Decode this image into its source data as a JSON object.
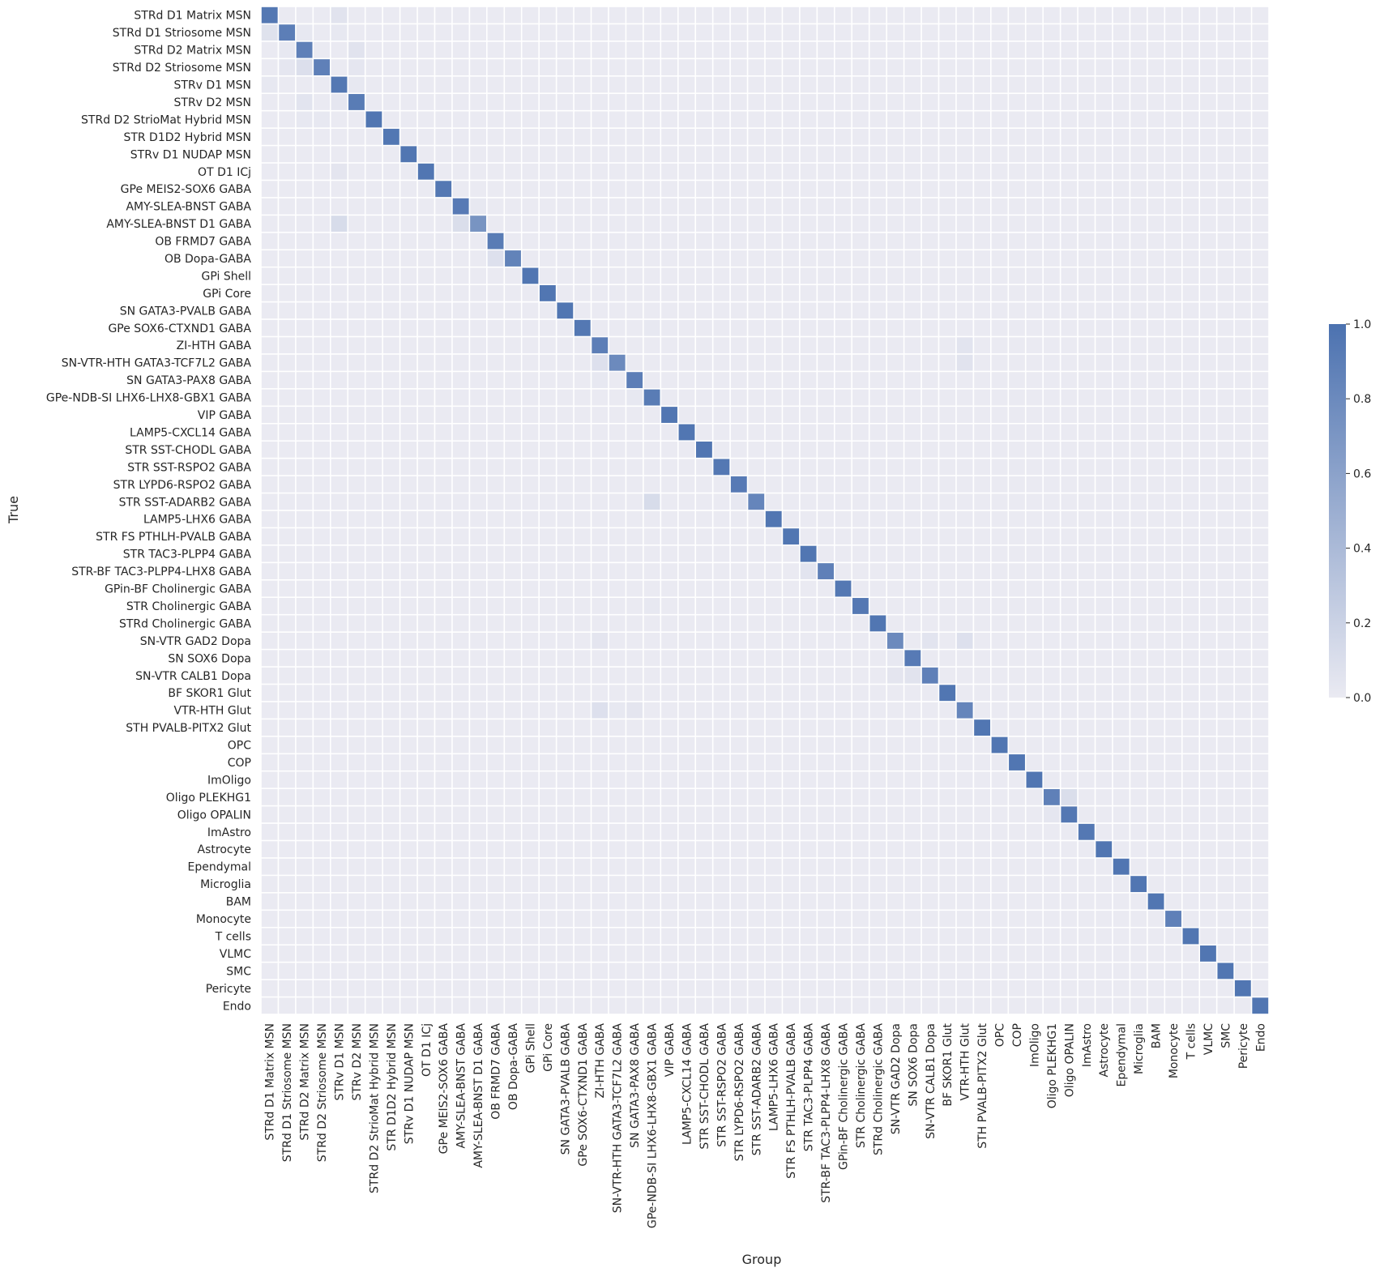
{
  "chart_data": {
    "type": "heatmap",
    "title": "",
    "xlabel": "Group",
    "ylabel": "True",
    "rows": [
      "STRd D1 Matrix MSN",
      "STRd D1 Striosome MSN",
      "STRd D2 Matrix MSN",
      "STRd D2 Striosome MSN",
      "STRv D1 MSN",
      "STRv D2 MSN",
      "STRd D2 StrioMat Hybrid MSN",
      "STR D1D2 Hybrid MSN",
      "STRv D1 NUDAP MSN",
      "OT D1 ICj",
      "GPe MEIS2-SOX6 GABA",
      "AMY-SLEA-BNST GABA",
      "AMY-SLEA-BNST D1 GABA",
      "OB FRMD7 GABA",
      "OB Dopa-GABA",
      "GPi Shell",
      "GPi Core",
      "SN GATA3-PVALB GABA",
      "GPe SOX6-CTXND1 GABA",
      "ZI-HTH GABA",
      "SN-VTR-HTH GATA3-TCF7L2 GABA",
      "SN GATA3-PAX8 GABA",
      "GPe-NDB-SI LHX6-LHX8-GBX1 GABA",
      "VIP GABA",
      "LAMP5-CXCL14 GABA",
      "STR SST-CHODL GABA",
      "STR SST-RSPO2 GABA",
      "STR LYPD6-RSPO2 GABA",
      "STR SST-ADARB2 GABA",
      "LAMP5-LHX6 GABA",
      "STR FS PTHLH-PVALB GABA",
      "STR TAC3-PLPP4 GABA",
      "STR-BF TAC3-PLPP4-LHX8 GABA",
      "GPin-BF Cholinergic GABA",
      "STR Cholinergic GABA",
      "STRd Cholinergic GABA",
      "SN-VTR GAD2 Dopa",
      "SN SOX6 Dopa",
      "SN-VTR CALB1 Dopa",
      "BF SKOR1 Glut",
      "VTR-HTH Glut",
      "STH PVALB-PITX2 Glut",
      "OPC",
      "COP",
      "ImOligo",
      "Oligo PLEKHG1",
      "Oligo OPALIN",
      "ImAstro",
      "Astrocyte",
      "Ependymal",
      "Microglia",
      "BAM",
      "Monocyte",
      "T cells",
      "VLMC",
      "SMC",
      "Pericyte",
      "Endo"
    ],
    "columns": [
      "STRd D1 Matrix MSN",
      "STRd D1 Striosome MSN",
      "STRd D2 Matrix MSN",
      "STRd D2 Striosome MSN",
      "STRv D1 MSN",
      "STRv D2 MSN",
      "STRd D2 StrioMat Hybrid MSN",
      "STR D1D2 Hybrid MSN",
      "STRv D1 NUDAP MSN",
      "OT D1 ICj",
      "GPe MEIS2-SOX6 GABA",
      "AMY-SLEA-BNST GABA",
      "AMY-SLEA-BNST D1 GABA",
      "OB FRMD7 GABA",
      "OB Dopa-GABA",
      "GPi Shell",
      "GPi Core",
      "SN GATA3-PVALB GABA",
      "GPe SOX6-CTXND1 GABA",
      "ZI-HTH GABA",
      "SN-VTR-HTH GATA3-TCF7L2 GABA",
      "SN GATA3-PAX8 GABA",
      "GPe-NDB-SI LHX6-LHX8-GBX1 GABA",
      "VIP GABA",
      "LAMP5-CXCL14 GABA",
      "STR SST-CHODL GABA",
      "STR SST-RSPO2 GABA",
      "STR LYPD6-RSPO2 GABA",
      "STR SST-ADARB2 GABA",
      "LAMP5-LHX6 GABA",
      "STR FS PTHLH-PVALB GABA",
      "STR TAC3-PLPP4 GABA",
      "STR-BF TAC3-PLPP4-LHX8 GABA",
      "GPin-BF Cholinergic GABA",
      "STR Cholinergic GABA",
      "STRd Cholinergic GABA",
      "SN-VTR GAD2 Dopa",
      "SN SOX6 Dopa",
      "SN-VTR CALB1 Dopa",
      "BF SKOR1 Glut",
      "VTR-HTH Glut",
      "STH PVALB-PITX2 Glut",
      "OPC",
      "COP",
      "ImOligo",
      "Oligo PLEKHG1",
      "Oligo OPALIN",
      "ImAstro",
      "Astrocyte",
      "Ependymal",
      "Microglia",
      "BAM",
      "Monocyte",
      "T cells",
      "VLMC",
      "SMC",
      "Pericyte",
      "Endo"
    ],
    "diagonal": [
      0.95,
      0.9,
      0.88,
      0.88,
      0.95,
      0.92,
      0.97,
      0.96,
      0.97,
      0.97,
      0.95,
      0.93,
      0.72,
      0.92,
      0.86,
      0.97,
      0.97,
      0.97,
      0.95,
      0.9,
      0.8,
      0.9,
      0.92,
      0.97,
      0.97,
      0.97,
      0.95,
      0.93,
      0.84,
      0.97,
      0.97,
      0.97,
      0.88,
      0.95,
      0.95,
      0.97,
      0.8,
      0.93,
      0.88,
      0.97,
      0.84,
      0.97,
      0.97,
      0.97,
      0.97,
      0.88,
      0.95,
      0.95,
      0.97,
      0.97,
      0.97,
      0.97,
      0.88,
      0.97,
      0.97,
      0.97,
      0.97,
      0.97
    ],
    "off_diagonal": [
      {
        "row": 0,
        "col": 4,
        "value": 0.06
      },
      {
        "row": 1,
        "col": 0,
        "value": 0.07
      },
      {
        "row": 1,
        "col": 2,
        "value": 0.02
      },
      {
        "row": 1,
        "col": 4,
        "value": 0.02
      },
      {
        "row": 2,
        "col": 1,
        "value": 0.02
      },
      {
        "row": 2,
        "col": 5,
        "value": 0.06
      },
      {
        "row": 3,
        "col": 2,
        "value": 0.09
      },
      {
        "row": 3,
        "col": 1,
        "value": 0.03
      },
      {
        "row": 3,
        "col": 5,
        "value": 0.03
      },
      {
        "row": 4,
        "col": 0,
        "value": 0.02
      },
      {
        "row": 4,
        "col": 5,
        "value": 0.02
      },
      {
        "row": 5,
        "col": 2,
        "value": 0.05
      },
      {
        "row": 5,
        "col": 4,
        "value": 0.03
      },
      {
        "row": 6,
        "col": 2,
        "value": 0.02
      },
      {
        "row": 6,
        "col": 3,
        "value": 0.02
      },
      {
        "row": 9,
        "col": 4,
        "value": 0.04
      },
      {
        "row": 11,
        "col": 12,
        "value": 0.02
      },
      {
        "row": 12,
        "col": 4,
        "value": 0.12
      },
      {
        "row": 12,
        "col": 11,
        "value": 0.1
      },
      {
        "row": 14,
        "col": 13,
        "value": 0.08
      },
      {
        "row": 18,
        "col": 22,
        "value": 0.02
      },
      {
        "row": 19,
        "col": 40,
        "value": 0.05
      },
      {
        "row": 20,
        "col": 19,
        "value": 0.08
      },
      {
        "row": 20,
        "col": 40,
        "value": 0.06
      },
      {
        "row": 21,
        "col": 19,
        "value": 0.02
      },
      {
        "row": 22,
        "col": 21,
        "value": 0.02
      },
      {
        "row": 28,
        "col": 22,
        "value": 0.12
      },
      {
        "row": 28,
        "col": 27,
        "value": 0.02
      },
      {
        "row": 32,
        "col": 31,
        "value": 0.05
      },
      {
        "row": 34,
        "col": 22,
        "value": 0.02
      },
      {
        "row": 36,
        "col": 19,
        "value": 0.04
      },
      {
        "row": 36,
        "col": 38,
        "value": 0.05
      },
      {
        "row": 36,
        "col": 40,
        "value": 0.08
      },
      {
        "row": 37,
        "col": 36,
        "value": 0.02
      },
      {
        "row": 38,
        "col": 36,
        "value": 0.04
      },
      {
        "row": 38,
        "col": 37,
        "value": 0.06
      },
      {
        "row": 40,
        "col": 19,
        "value": 0.08
      },
      {
        "row": 40,
        "col": 21,
        "value": 0.04
      },
      {
        "row": 40,
        "col": 20,
        "value": 0.02
      },
      {
        "row": 45,
        "col": 46,
        "value": 0.1
      },
      {
        "row": 46,
        "col": 45,
        "value": 0.03
      }
    ],
    "colorbar": {
      "range": [
        0.0,
        1.0
      ],
      "ticks": [
        "0.0",
        "0.2",
        "0.4",
        "0.6",
        "0.8",
        "1.0"
      ],
      "color_low": "#eaeaf2",
      "color_high": "#4c72b0"
    },
    "grid_line_color": "#ffffff"
  }
}
